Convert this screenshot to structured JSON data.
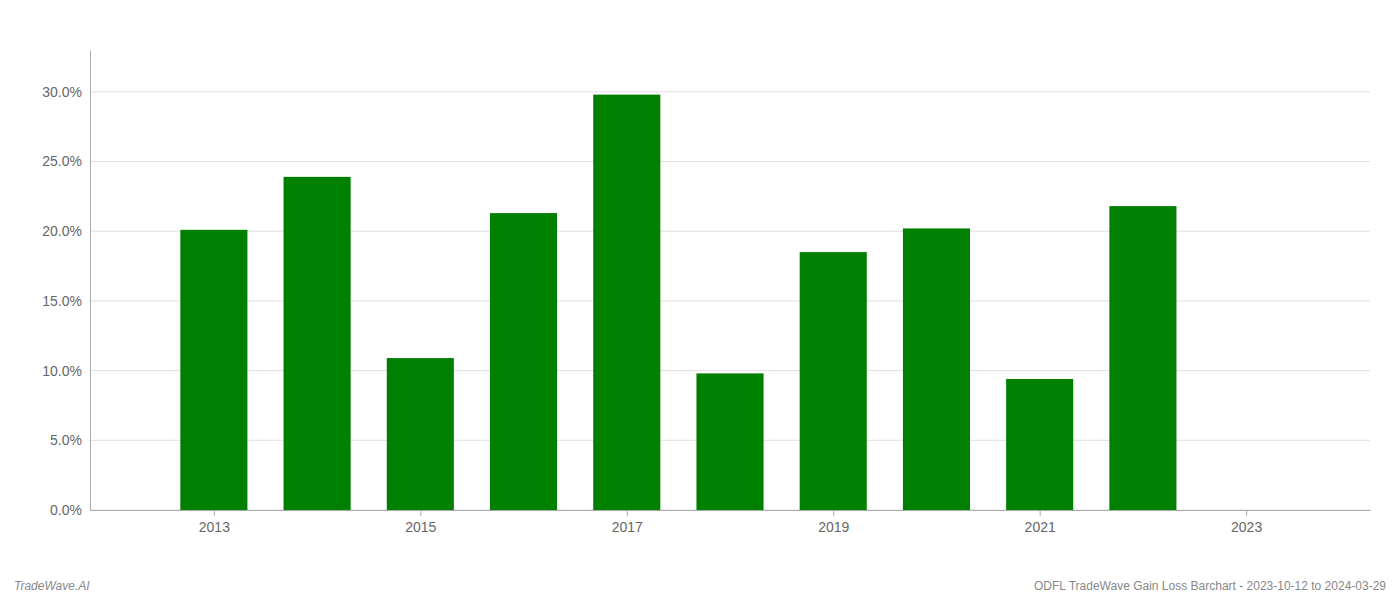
{
  "chart_data": {
    "type": "bar",
    "x": [
      2013,
      2014,
      2015,
      2016,
      2017,
      2018,
      2019,
      2020,
      2021,
      2022
    ],
    "values": [
      0.201,
      0.239,
      0.109,
      0.213,
      0.298,
      0.098,
      0.185,
      0.202,
      0.094,
      0.218
    ],
    "color": "#008000",
    "xlim": [
      2011.8,
      2024.2
    ],
    "xticks": [
      2013,
      2015,
      2017,
      2019,
      2021,
      2023
    ],
    "ylim": [
      0,
      0.33
    ],
    "yticks": [
      {
        "value": 0.0,
        "label": "0.0%"
      },
      {
        "value": 0.05,
        "label": "5.0%"
      },
      {
        "value": 0.1,
        "label": "10.0%"
      },
      {
        "value": 0.15,
        "label": "15.0%"
      },
      {
        "value": 0.2,
        "label": "20.0%"
      },
      {
        "value": 0.25,
        "label": "25.0%"
      },
      {
        "value": 0.3,
        "label": "30.0%"
      }
    ],
    "grid": true,
    "annotations": [
      "TradeWave.AI",
      "ODFL TradeWave Gain Loss Barchart - 2023-10-12 to 2024-03-29"
    ]
  }
}
